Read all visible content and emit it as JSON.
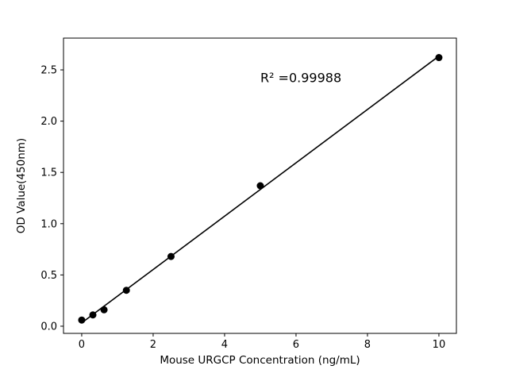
{
  "chart_data": {
    "type": "scatter",
    "title": "",
    "xlabel": "Mouse URGCP Concentration (ng/mL)",
    "ylabel": "OD Value(450nm)",
    "x": [
      0,
      0.3125,
      0.625,
      1.25,
      2.5,
      5,
      10
    ],
    "y": [
      0.06,
      0.11,
      0.16,
      0.35,
      0.68,
      1.37,
      2.62
    ],
    "xlim": [
      -0.51,
      10.49
    ],
    "ylim": [
      -0.07,
      2.81
    ],
    "xticks": {
      "values": [
        0,
        2,
        4,
        6,
        8,
        10
      ],
      "labels": [
        "0",
        "2",
        "4",
        "6",
        "8",
        "10"
      ]
    },
    "yticks": {
      "values": [
        0,
        0.5,
        1.0,
        1.5,
        2.0,
        2.5
      ],
      "labels": [
        "0.0",
        "0.5",
        "1.0",
        "1.5",
        "2.0",
        "2.5"
      ]
    },
    "annotation": {
      "text": "R² =0.99988",
      "x": 5.0,
      "y": 2.38
    },
    "marker_color": "#000000",
    "line_color": "#000000",
    "background_color": "#ffffff",
    "grid": false,
    "legend_position": "none",
    "fit_line": true
  }
}
